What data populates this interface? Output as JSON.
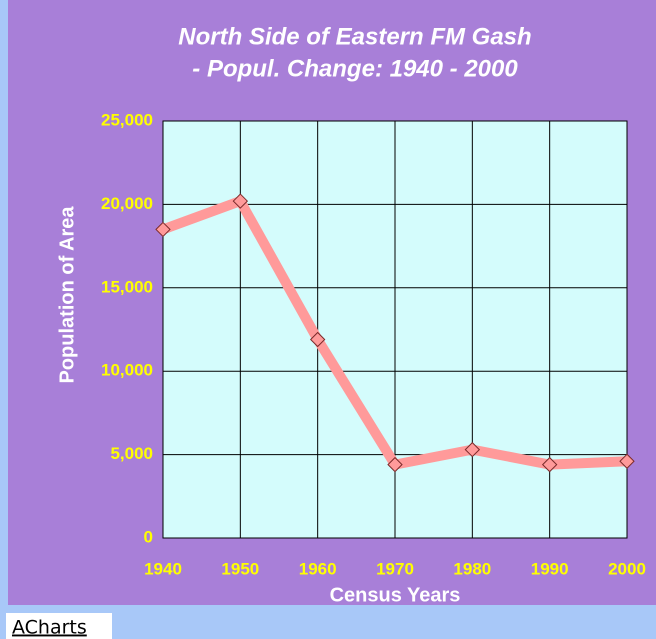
{
  "chart_data": {
    "type": "line",
    "title": [
      "North Side of Eastern FM Gash",
      "- Popul. Change: 1940 - 2000"
    ],
    "x_label": "Census Years",
    "y_label": "Population of Area",
    "x": [
      1940,
      1950,
      1960,
      1970,
      1980,
      1990,
      2000
    ],
    "series": [
      {
        "name": "Population",
        "color": "#ff9a9a",
        "values": [
          18500,
          20200,
          11900,
          4400,
          5300,
          4400,
          4600
        ]
      }
    ],
    "xlim": [
      1940,
      2000
    ],
    "xticks": [
      1940,
      1950,
      1960,
      1970,
      1980,
      1990,
      2000
    ],
    "ylim": [
      0,
      25000
    ],
    "yticks": [
      0,
      {
        "value": 5000,
        "label": "5,000"
      },
      {
        "value": 10000,
        "label": "10,000"
      },
      {
        "value": 15000,
        "label": "15,000"
      },
      {
        "value": 20000,
        "label": "20,000"
      },
      {
        "value": 25000,
        "label": "25,000"
      }
    ],
    "grid": true,
    "footer": "ACharts"
  }
}
